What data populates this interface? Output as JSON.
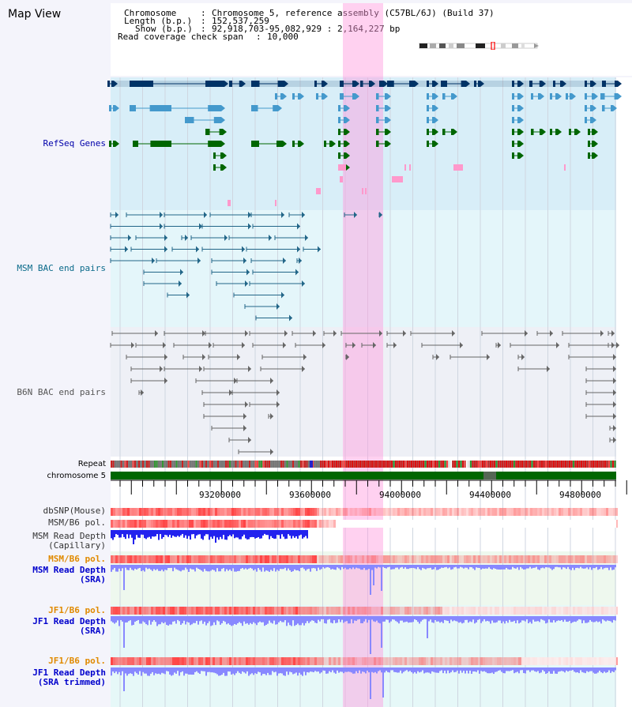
{
  "title": "Map View",
  "info": {
    "chromosome_key": "Chromosome",
    "chromosome_val": "Chromosome 5, reference assembly (C57BL/6J) (Build 37)",
    "length_key": "Length (b.p.)",
    "length_val": "152,537,259",
    "show_key": "Show (b.p.)",
    "show_val": "92,918,703-95,082,929 : 2,164,227 bp",
    "coverage_key": "Read coverage check span",
    "coverage_val": "10,000"
  },
  "tracks": {
    "refseq": {
      "label": "RefSeq Genes",
      "color": "#0000aa"
    },
    "msm_bac": {
      "label": "MSM BAC end pairs",
      "color": "#0a6a8a"
    },
    "b6n_bac": {
      "label": "B6N BAC end pairs",
      "color": "#555555"
    },
    "repeat": {
      "label": "Repeat",
      "color": "#000000"
    },
    "chromosome": {
      "label": "chromosome 5",
      "color": "#000000"
    },
    "dbsnp": {
      "label": "dbSNP(Mouse)",
      "color": "#333333"
    },
    "msm_b6_pol_1": {
      "label": "MSM/B6 pol.",
      "color": "#333333"
    },
    "msm_depth_cap_1": {
      "label": "MSM Read Depth",
      "color": "#333333"
    },
    "msm_depth_cap_2": {
      "label": "(Capillary)",
      "color": "#333333"
    },
    "msm_b6_pol_2": {
      "label": "MSM/B6 pol.",
      "color": "#e08a00"
    },
    "msm_depth_sra_1": {
      "label": "MSM Read Depth",
      "color": "#0000cc"
    },
    "msm_depth_sra_2": {
      "label": "(SRA)",
      "color": "#0000cc"
    },
    "jf1_pol_1": {
      "label": "JF1/B6 pol.",
      "color": "#e08a00"
    },
    "jf1_depth_sra_1": {
      "label": "JF1 Read Depth",
      "color": "#0000cc"
    },
    "jf1_depth_sra_2": {
      "label": "(SRA)",
      "color": "#0000cc"
    },
    "jf1_pol_2": {
      "label": "JF1/B6 pol.",
      "color": "#e08a00"
    },
    "jf1_depth_trim_1": {
      "label": "JF1 Read Depth",
      "color": "#0000cc"
    },
    "jf1_depth_trim_2": {
      "label": "(SRA trimmed)",
      "color": "#0000cc"
    }
  },
  "axis": {
    "ticks": [
      "93200000",
      "93600000",
      "94000000",
      "94400000",
      "94800000"
    ]
  },
  "colors": {
    "refseq_dark": "#003366",
    "refseq_mid": "#4499cc",
    "refseq_green": "#006600",
    "refseq_pink": "#ff99cc",
    "bac_teal": "#226688",
    "bac_gray": "#666666",
    "highlight": "#ff99dd",
    "depth_blue": "#2222ee",
    "depth_light": "#8888ff",
    "pol_red": "#ff4444",
    "chrom_green": "#006600"
  }
}
